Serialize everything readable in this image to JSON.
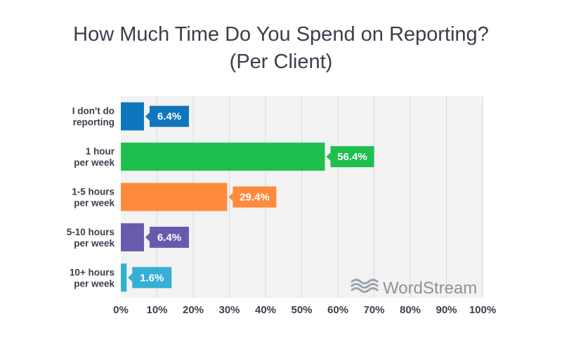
{
  "chart_data": {
    "type": "bar",
    "orientation": "horizontal",
    "title": "How Much Time Do You Spend on Reporting?",
    "subtitle": "(Per Client)",
    "categories": [
      [
        "I don't do",
        "reporting"
      ],
      [
        "1 hour",
        "per week"
      ],
      [
        "1-5 hours",
        "per week"
      ],
      [
        "5-10 hours",
        "per week"
      ],
      [
        "10+ hours",
        "per week"
      ]
    ],
    "values": [
      6.4,
      56.4,
      29.4,
      6.4,
      1.6
    ],
    "value_labels": [
      "6.4%",
      "56.4%",
      "29.4%",
      "6.4%",
      "1.6%"
    ],
    "colors": [
      "#0e76bc",
      "#1fbf4f",
      "#ff8a3d",
      "#6a5aad",
      "#35b0d4"
    ],
    "xlim": [
      0,
      100
    ],
    "x_ticks": [
      0,
      10,
      20,
      30,
      40,
      50,
      60,
      70,
      80,
      90,
      100
    ],
    "x_tick_labels": [
      "0%",
      "10%",
      "20%",
      "30%",
      "40%",
      "50%",
      "60%",
      "70%",
      "80%",
      "90%",
      "100%"
    ],
    "grid": true,
    "watermark": "WordStream"
  }
}
